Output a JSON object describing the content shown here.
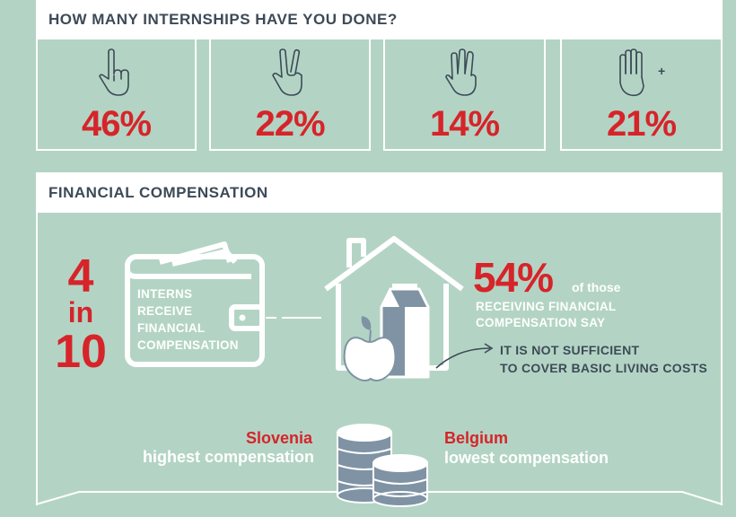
{
  "internships": {
    "heading": "HOW MANY INTERNSHIPS HAVE YOU DONE?",
    "options": [
      {
        "icon": "one-finger-hand-icon",
        "value": "46%"
      },
      {
        "icon": "two-fingers-hand-icon",
        "value": "22%"
      },
      {
        "icon": "three-fingers-hand-icon",
        "value": "14%"
      },
      {
        "icon": "four-fingers-hand-icon",
        "extra": "+",
        "value": "21%"
      }
    ]
  },
  "compensation": {
    "heading": "FINANCIAL COMPENSATION",
    "ratio": {
      "num": "4",
      "word": "in",
      "den": "10"
    },
    "wallet_lines": [
      "INTERNS",
      "RECEIVE",
      "FINANCIAL",
      "COMPENSATION"
    ],
    "stat_value": "54%",
    "stat_suffix": "of those",
    "receiving_lines": [
      "RECEIVING FINANCIAL",
      "COMPENSATION SAY"
    ],
    "insufficient_lines": [
      "IT IS NOT SUFFICIENT",
      "TO COVER BASIC LIVING COSTS"
    ],
    "highest": {
      "country": "Slovenia",
      "label": "highest compensation"
    },
    "lowest": {
      "country": "Belgium",
      "label": "lowest compensation"
    }
  },
  "colors": {
    "accent": "#d6242a",
    "navy": "#3d4a57",
    "background": "#b3d4c4",
    "icon_fill": "#7f93a4"
  }
}
